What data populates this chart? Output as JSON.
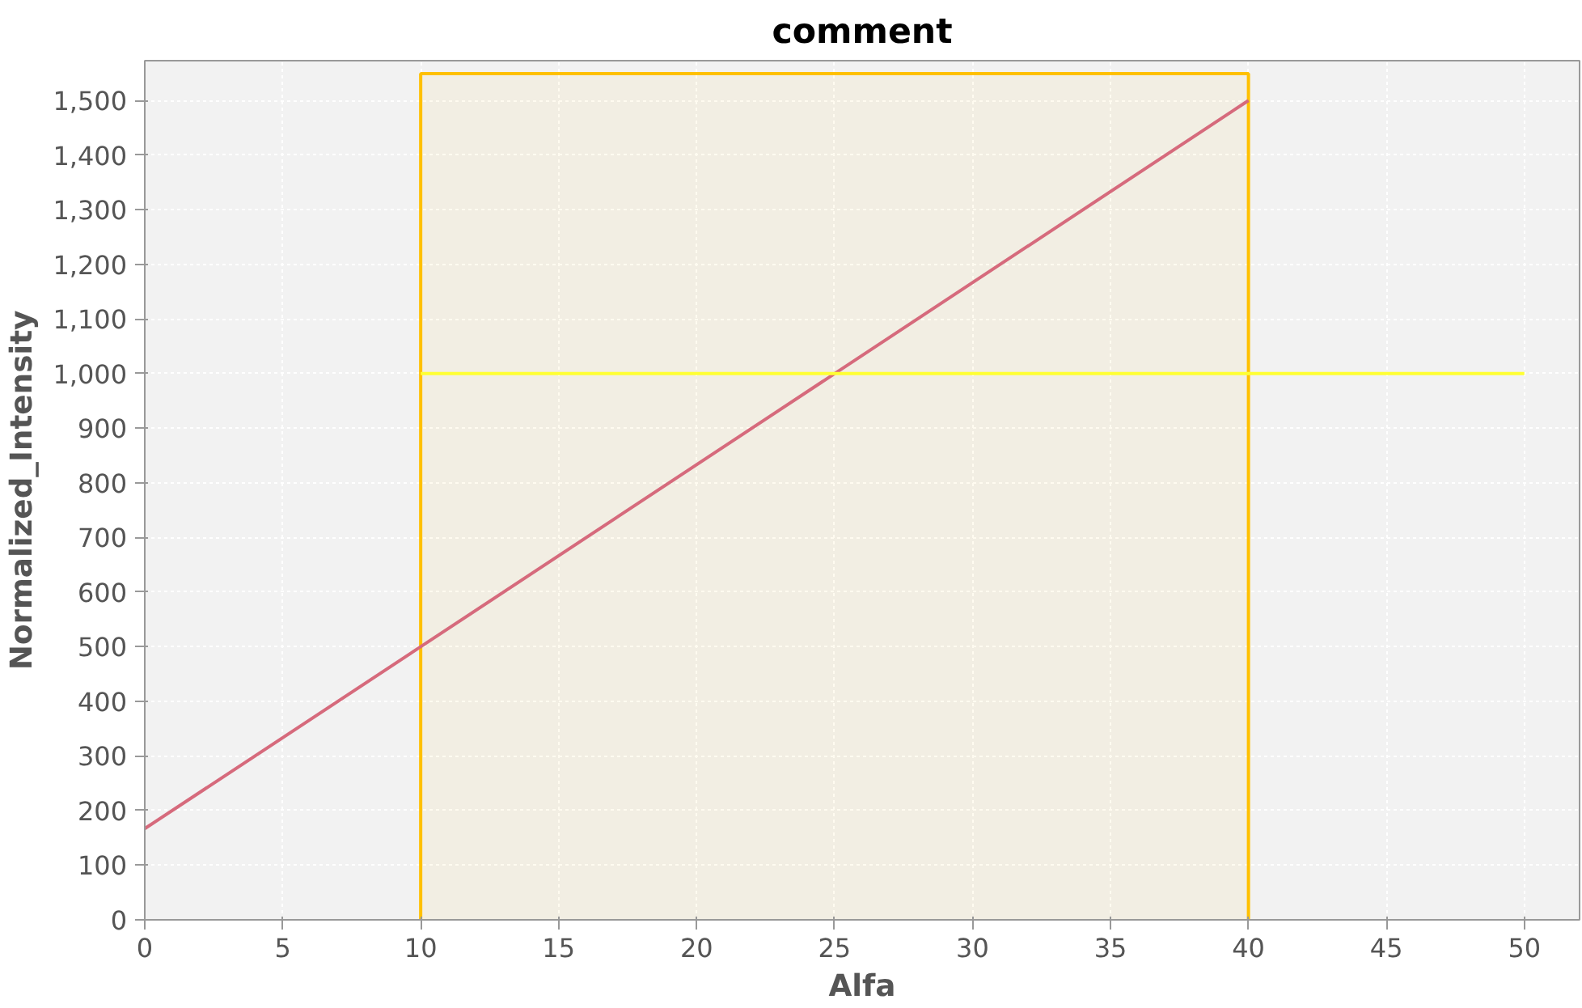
{
  "chart_data": {
    "type": "line",
    "title": "comment",
    "xlabel": "Alfa",
    "ylabel": "Normalized_Intensity",
    "xlim": [
      0,
      52
    ],
    "xticks": [
      0,
      5,
      10,
      15,
      20,
      25,
      30,
      35,
      40,
      45,
      50
    ],
    "ylim": [
      0,
      1573
    ],
    "yticks": [
      0,
      100,
      200,
      300,
      400,
      500,
      600,
      700,
      800,
      900,
      {
        "value": 1000,
        "label": "1,000"
      },
      {
        "value": 1100,
        "label": "1,100"
      },
      {
        "value": 1200,
        "label": "1,200"
      },
      {
        "value": 1300,
        "label": "1,300"
      },
      {
        "value": 1400,
        "label": "1,400"
      },
      {
        "value": 1500,
        "label": "1,500"
      }
    ],
    "grid": true,
    "series": [
      {
        "color": "#d66a7c",
        "x": [
          0,
          10,
          25,
          40
        ],
        "values": [
          167,
          500,
          1000,
          1500
        ]
      },
      {
        "color": "#ffff33",
        "x": [
          10,
          50
        ],
        "values": [
          1000,
          1000
        ]
      }
    ],
    "bands": [
      {
        "axis": "x",
        "from": 10,
        "to": 40,
        "color": "#ffc000"
      }
    ]
  }
}
